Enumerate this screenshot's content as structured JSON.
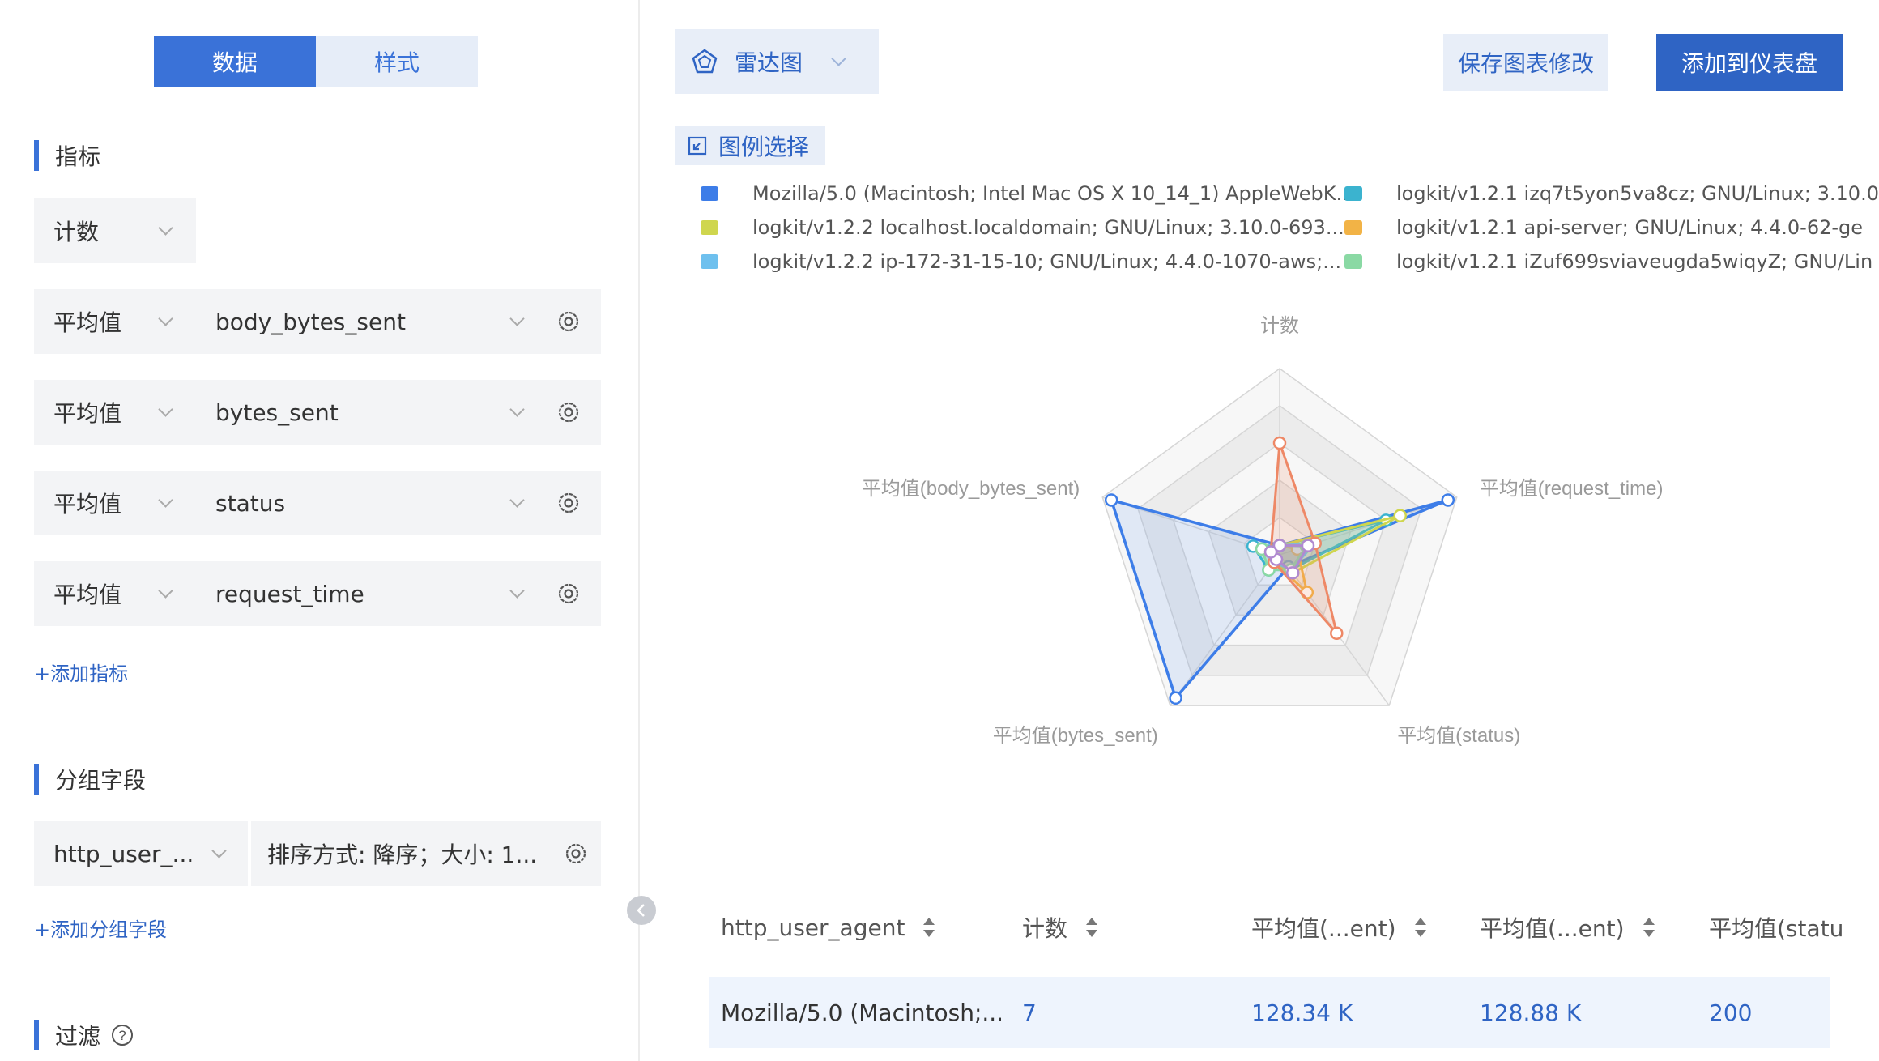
{
  "tabs": {
    "data": "数据",
    "style": "样式"
  },
  "metrics": {
    "title": "指标",
    "count_select": "计数",
    "rows": [
      {
        "agg": "平均值",
        "field": "body_bytes_sent"
      },
      {
        "agg": "平均值",
        "field": "bytes_sent"
      },
      {
        "agg": "平均值",
        "field": "status"
      },
      {
        "agg": "平均值",
        "field": "request_time"
      }
    ],
    "add": "+添加指标"
  },
  "group": {
    "title": "分组字段",
    "field": "http_user_...",
    "sort": "排序方式: 降序；大小: 1...",
    "add": "+添加分组字段"
  },
  "filter": {
    "title": "过滤",
    "help_icon": "question-circle-icon"
  },
  "chart_type": {
    "label": "雷达图",
    "icon": "pentagon-radar-icon"
  },
  "buttons": {
    "save": "保存图表修改",
    "add_dashboard": "添加到仪表盘"
  },
  "legend_select": {
    "label": "图例选择",
    "icon": "expand-icon"
  },
  "legend": [
    {
      "label": "Mozilla/5.0 (Macintosh; Intel Mac OS X 10_14_1) AppleWebK...",
      "color": "#3d7de8"
    },
    {
      "label": "logkit/v1.2.1 izq7t5yon5va8cz; GNU/Linux; 3.10.0",
      "color": "#3bb3cf"
    },
    {
      "label": "logkit/v1.2.2 localhost.localdomain; GNU/Linux; 3.10.0-693....",
      "color": "#cfd64e"
    },
    {
      "label": "logkit/v1.2.1 api-server; GNU/Linux; 4.4.0-62-ge",
      "color": "#f2b346"
    },
    {
      "label": "logkit/v1.2.2 ip-172-31-15-10; GNU/Linux; 4.4.0-1070-aws;...",
      "color": "#6ec0ee"
    },
    {
      "label": "logkit/v1.2.1 iZuf699sviaveugda5wiqyZ; GNU/Lin",
      "color": "#8ad9a4"
    }
  ],
  "chart_data": {
    "type": "radar",
    "indicators": [
      "计数",
      "平均值(request_time)",
      "平均值(status)",
      "平均值(bytes_sent)",
      "平均值(body_bytes_sent)"
    ],
    "series": [
      {
        "name": "Mozilla/5.0 (Macintosh; Intel Mac OS X 10_14_1) AppleWebK...",
        "color": "#3d7de8",
        "values": [
          0.05,
          0.95,
          0.08,
          0.95,
          0.95
        ]
      },
      {
        "name": "logkit/v1.2.1 izq7t5yon5va8cz; GNU/Linux; 3.10.0",
        "color": "#3bb3cf",
        "values": [
          0.05,
          0.6,
          0.1,
          0.1,
          0.15
        ]
      },
      {
        "name": "logkit/v1.2.2 localhost.localdomain; GNU/Linux; 3.10.0-693....",
        "color": "#cfd64e",
        "values": [
          0.05,
          0.68,
          0.12,
          0.05,
          0.1
        ]
      },
      {
        "name": "logkit/v1.2.1 api-server; GNU/Linux; 4.4.0-62-ge",
        "color": "#f2b346",
        "values": [
          0.05,
          0.1,
          0.25,
          0.05,
          0.1
        ]
      },
      {
        "name": "logkit/v1.2.2 ip-172-31-15-10; GNU/Linux; 4.4.0-1070-aws;...",
        "color": "#6ec0ee",
        "values": [
          0.05,
          0.2,
          0.1,
          0.05,
          0.1
        ]
      },
      {
        "name": "logkit/v1.2.1 iZuf699sviaveugda5wiqyZ; GNU/Lin",
        "color": "#8ad9a4",
        "values": [
          0.05,
          0.15,
          0.1,
          0.1,
          0.1
        ]
      },
      {
        "name": "",
        "color": "#ee8866",
        "values": [
          0.6,
          0.2,
          0.52,
          0.05,
          0.05
        ]
      },
      {
        "name": "",
        "color": "#b08ad0",
        "values": [
          0.05,
          0.16,
          0.12,
          0.03,
          0.05
        ]
      }
    ]
  },
  "table": {
    "headers": [
      "http_user_agent",
      "计数",
      "平均值(...ent)",
      "平均值(...ent)",
      "平均值(statu"
    ],
    "row": [
      "Mozilla/5.0 (Macintosh;...",
      "7",
      "128.34 K",
      "128.88 K",
      "200"
    ]
  }
}
